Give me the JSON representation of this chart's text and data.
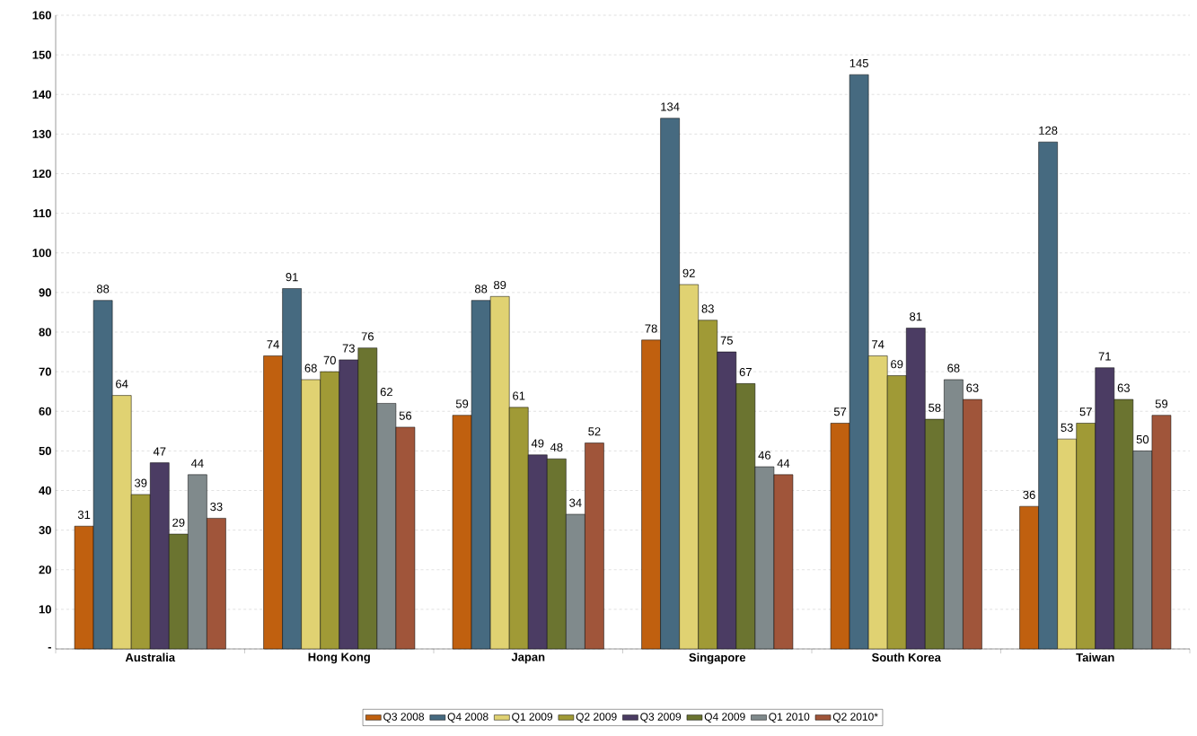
{
  "chart_data": {
    "type": "bar",
    "categories": [
      "Australia",
      "Hong Kong",
      "Japan",
      "Singapore",
      "South Korea",
      "Taiwan"
    ],
    "series": [
      {
        "name": "Q3 2008",
        "color": "#c0600f",
        "values": [
          31,
          74,
          59,
          78,
          57,
          36
        ]
      },
      {
        "name": "Q4 2008",
        "color": "#466a80",
        "values": [
          88,
          91,
          88,
          134,
          145,
          128
        ]
      },
      {
        "name": "Q1 2009",
        "color": "#e0d272",
        "values": [
          64,
          68,
          89,
          92,
          74,
          53
        ]
      },
      {
        "name": "Q2 2009",
        "color": "#a09a36",
        "values": [
          39,
          70,
          61,
          83,
          69,
          57
        ]
      },
      {
        "name": "Q3 2009",
        "color": "#4b3c63",
        "values": [
          47,
          73,
          49,
          75,
          81,
          71
        ]
      },
      {
        "name": "Q4 2009",
        "color": "#6b7430",
        "values": [
          29,
          76,
          48,
          67,
          58,
          63
        ]
      },
      {
        "name": "Q1 2010",
        "color": "#808a8c",
        "values": [
          44,
          62,
          34,
          46,
          68,
          50
        ]
      },
      {
        "name": "Q2 2010*",
        "color": "#a0553a",
        "values": [
          33,
          56,
          52,
          44,
          63,
          59
        ]
      }
    ],
    "ylim": [
      0,
      160
    ],
    "yticks": [
      {
        "value": 0,
        "label": "-"
      },
      10,
      20,
      30,
      40,
      50,
      60,
      70,
      80,
      90,
      100,
      110,
      120,
      130,
      140,
      150,
      160
    ],
    "grid": "y",
    "legend": "bottom",
    "data_labels": true
  }
}
